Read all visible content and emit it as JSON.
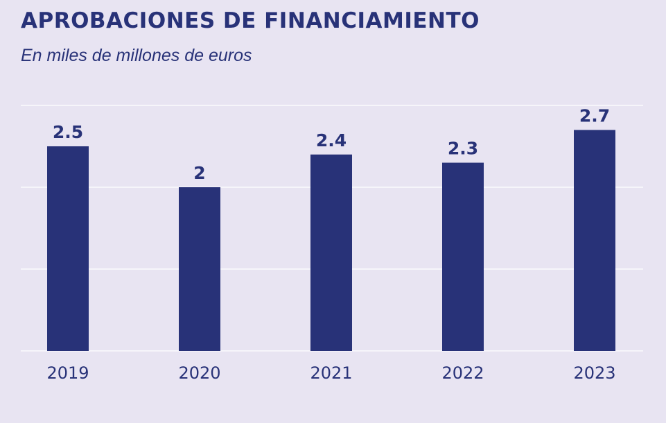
{
  "chart_data": {
    "type": "bar",
    "title": "APROBACIONES DE FINANCIAMIENTO",
    "subtitle": "En miles de millones de euros",
    "categories": [
      "2019",
      "2020",
      "2021",
      "2022",
      "2023"
    ],
    "values": [
      2.5,
      2,
      2.4,
      2.3,
      2.7
    ],
    "data_labels": [
      "2.5",
      "2",
      "2.4",
      "2.3",
      "2.7"
    ],
    "xlabel": "",
    "ylabel": "",
    "ylim": [
      0,
      3
    ],
    "grid": true,
    "colors": {
      "bar": "#283278",
      "background": "#e8e4f2",
      "grid": "#ffffff"
    }
  }
}
